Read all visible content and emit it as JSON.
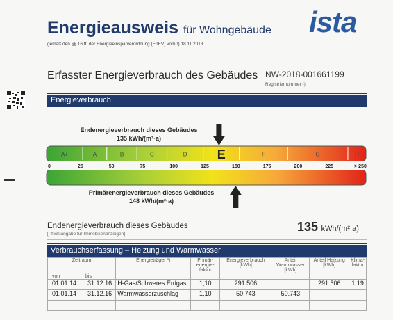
{
  "header": {
    "title": "Energieausweis",
    "title_suffix": "für Wohngebäude",
    "law_note": "gemäß den §§ 16 ff. der Energieeinsparverordnung (EnEV) vom ¹) 18.11.2013",
    "logo_text": "ista"
  },
  "section1": {
    "title": "Erfasster Energieverbrauch des Gebäudes",
    "registration_number": "NW-2018-001661199",
    "registration_label": "Registriernummer ²)"
  },
  "bar1": {
    "label": "Energieverbrauch"
  },
  "scale": {
    "classes": [
      "A+",
      "A",
      "B",
      "C",
      "D",
      "E",
      "F",
      "G",
      "H"
    ],
    "active_class": "E",
    "ticks": [
      "0",
      "25",
      "50",
      "75",
      "100",
      "125",
      "150",
      "175",
      "200",
      "225",
      "> 250"
    ],
    "end_label": "Endenergieverbrauch dieses Gebäudes",
    "end_value": "135 kWh/(m²·a)",
    "end_marker_value": 135,
    "primary_label": "Primärenergieverbrauch dieses Gebäudes",
    "primary_value": "148 kWh/(m²·a)",
    "primary_marker_value": 148,
    "max": 250
  },
  "end_consumption": {
    "title": "Endenergieverbrauch dieses Gebäudes",
    "note": "[Pflichtangabe für Immobilienanzeigen]",
    "value": "135",
    "unit": "kWh/(m² a)"
  },
  "bar2": {
    "label": "Verbrauchserfassung – Heizung und Warmwasser"
  },
  "table": {
    "headers": {
      "zeitraum": "Zeitraum",
      "von": "von",
      "bis": "bis",
      "energietraeger": "Energieträger ³)",
      "primaer": "Primär-\nenergie-\nfaktor",
      "verbrauch": "Energieverbrauch\n[kWh]",
      "warmwasser": "Anteil\nWarmwasser\n[kWh]",
      "heizung": "Anteil Heizung\n[kWh]",
      "klima": "Klima-\nfaktor"
    },
    "rows": [
      {
        "von": "01.01.14",
        "bis": "31.12.16",
        "traeger": "H-Gas/Schweres Erdgas",
        "faktor": "1,10",
        "verbrauch": "291.506",
        "warmwasser": "",
        "heizung": "291.506",
        "klima": "1,19"
      },
      {
        "von": "01.01.14",
        "bis": "31.12.16",
        "traeger": "Warmwasserzuschlag",
        "faktor": "1,10",
        "verbrauch": "50.743",
        "warmwasser": "50.743",
        "heizung": "",
        "klima": ""
      }
    ]
  }
}
